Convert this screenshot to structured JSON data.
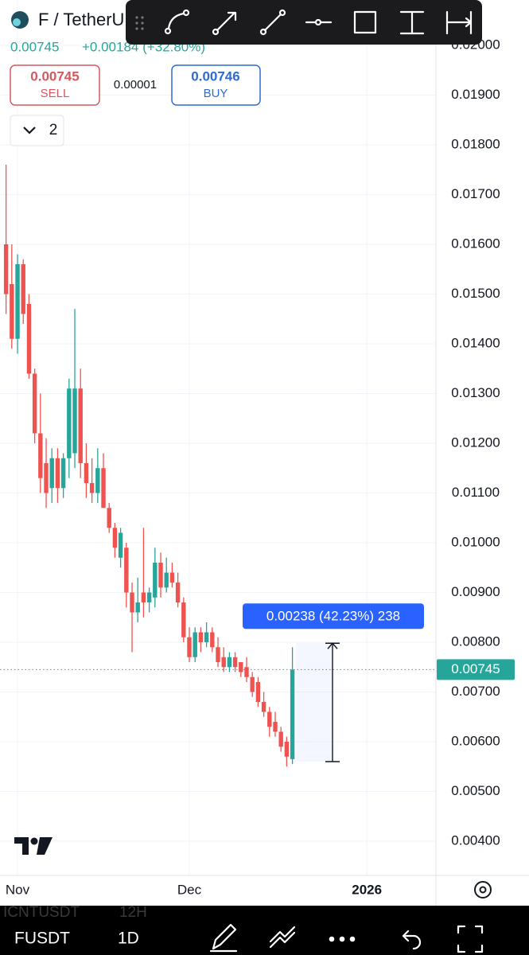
{
  "header": {
    "symbol": "F / TetherU",
    "price": "0.00745",
    "change": "+0.00184 (+32.80%)",
    "sell_price": "0.00745",
    "sell_label": "SELL",
    "spread": "0.00001",
    "buy_price": "0.00746",
    "buy_label": "BUY",
    "indicators_count": "2"
  },
  "chart_data": {
    "type": "candlestick",
    "up_color": "#26a69a",
    "down_color": "#ef5350",
    "grid": true,
    "x": [
      -2,
      -1,
      0,
      1,
      2,
      3,
      4,
      5,
      6,
      7,
      8,
      9,
      10,
      11,
      12,
      13,
      14,
      15,
      16,
      17,
      18,
      19,
      20,
      21,
      22,
      23,
      24,
      25,
      26,
      27,
      28,
      29,
      30,
      31,
      32,
      33,
      34,
      35,
      36,
      37,
      38,
      39,
      40,
      41,
      42,
      43,
      44,
      45,
      46,
      47,
      48
    ],
    "open": [
      0.016,
      0.0152,
      0.0141,
      0.0156,
      0.0148,
      0.0134,
      0.0122,
      0.0116,
      0.0111,
      0.0117,
      0.0111,
      0.0117,
      0.0118,
      0.0131,
      0.0116,
      0.0112,
      0.011,
      0.0115,
      0.0107,
      0.0103,
      0.0097,
      0.0099,
      0.009,
      0.0086,
      0.009,
      0.0088,
      0.0089,
      0.0096,
      0.0091,
      0.0094,
      0.0092,
      0.0088,
      0.0081,
      0.0077,
      0.0082,
      0.008,
      0.0082,
      0.0079,
      0.0077,
      0.0075,
      0.0077,
      0.0076,
      0.0075,
      0.0073,
      0.0072,
      0.0068,
      0.0066,
      0.0064,
      0.0062,
      0.006,
      0.00565
    ],
    "high": [
      0.0176,
      0.016,
      0.0158,
      0.0157,
      0.015,
      0.0135,
      0.013,
      0.0121,
      0.0119,
      0.0119,
      0.0118,
      0.0133,
      0.0147,
      0.0135,
      0.012,
      0.0117,
      0.0119,
      0.0118,
      0.0108,
      0.0104,
      0.0103,
      0.01,
      0.0092,
      0.0093,
      0.0103,
      0.0091,
      0.0099,
      0.0098,
      0.0097,
      0.0096,
      0.0094,
      0.0089,
      0.0083,
      0.0083,
      0.0083,
      0.0084,
      0.0083,
      0.0081,
      0.0079,
      0.0078,
      0.0078,
      0.0076,
      0.0077,
      0.0074,
      0.0073,
      0.007,
      0.0067,
      0.0066,
      0.0063,
      0.0061,
      0.0079
    ],
    "low": [
      0.0146,
      0.0139,
      0.0138,
      0.0144,
      0.0133,
      0.012,
      0.011,
      0.0107,
      0.0108,
      0.0108,
      0.0109,
      0.0113,
      0.0115,
      0.0113,
      0.0109,
      0.0108,
      0.0108,
      0.0108,
      0.0102,
      0.0097,
      0.0095,
      0.0087,
      0.0078,
      0.0084,
      0.0085,
      0.0086,
      0.0087,
      0.0089,
      0.009,
      0.0091,
      0.0087,
      0.008,
      0.0076,
      0.0076,
      0.0078,
      0.0079,
      0.0078,
      0.0075,
      0.0074,
      0.0074,
      0.0074,
      0.0073,
      0.0072,
      0.0069,
      0.0067,
      0.0065,
      0.0061,
      0.0061,
      0.0058,
      0.0055,
      0.00555
    ],
    "close": [
      0.015,
      0.0141,
      0.0156,
      0.0146,
      0.0134,
      0.0122,
      0.0113,
      0.011,
      0.0117,
      0.0111,
      0.0117,
      0.0131,
      0.0131,
      0.0116,
      0.0112,
      0.011,
      0.0115,
      0.0107,
      0.0103,
      0.0099,
      0.0102,
      0.009,
      0.0086,
      0.0088,
      0.0088,
      0.009,
      0.0096,
      0.0091,
      0.0094,
      0.0092,
      0.0088,
      0.0081,
      0.0077,
      0.0082,
      0.008,
      0.0082,
      0.0079,
      0.0076,
      0.0075,
      0.0077,
      0.0075,
      0.0074,
      0.0073,
      0.007,
      0.0068,
      0.0066,
      0.0063,
      0.0062,
      0.0059,
      0.0057,
      0.00745
    ],
    "xlim": [
      -3.06,
      73.06
    ],
    "xticks": [
      {
        "value": 0,
        "label": "Nov"
      },
      {
        "value": 30,
        "label": "Dec"
      },
      {
        "value": 61,
        "label": "2026"
      }
    ],
    "ylim": [
      0.003312,
      0.020912
    ],
    "yticks": [
      {
        "value": 0.004,
        "label": "0.00400"
      },
      {
        "value": 0.005,
        "label": "0.00500"
      },
      {
        "value": 0.006,
        "label": "0.00600"
      },
      {
        "value": 0.007,
        "label": "0.00700"
      },
      {
        "value": 0.008,
        "label": "0.00800"
      },
      {
        "value": 0.009,
        "label": "0.00900"
      },
      {
        "value": 0.01,
        "label": "0.01000"
      },
      {
        "value": 0.011,
        "label": "0.01100"
      },
      {
        "value": 0.012,
        "label": "0.01200"
      },
      {
        "value": 0.013,
        "label": "0.01300"
      },
      {
        "value": 0.014,
        "label": "0.01400"
      },
      {
        "value": 0.015,
        "label": "0.01500"
      },
      {
        "value": 0.016,
        "label": "0.01600"
      },
      {
        "value": 0.017,
        "label": "0.01700"
      },
      {
        "value": 0.018,
        "label": "0.01800"
      },
      {
        "value": 0.019,
        "label": "0.01900"
      },
      {
        "value": 0.02,
        "label": "0.02000"
      }
    ],
    "last_price": 0.00745,
    "measure": {
      "label": "0.00238 (42.23%) 238",
      "start": 0.0056,
      "end": 0.00798
    }
  },
  "bottom_bar": {
    "symbol": "FUSDT",
    "interval": "1D",
    "ghost_symbol": "ICNTUSDT",
    "ghost_interval": "12H"
  }
}
